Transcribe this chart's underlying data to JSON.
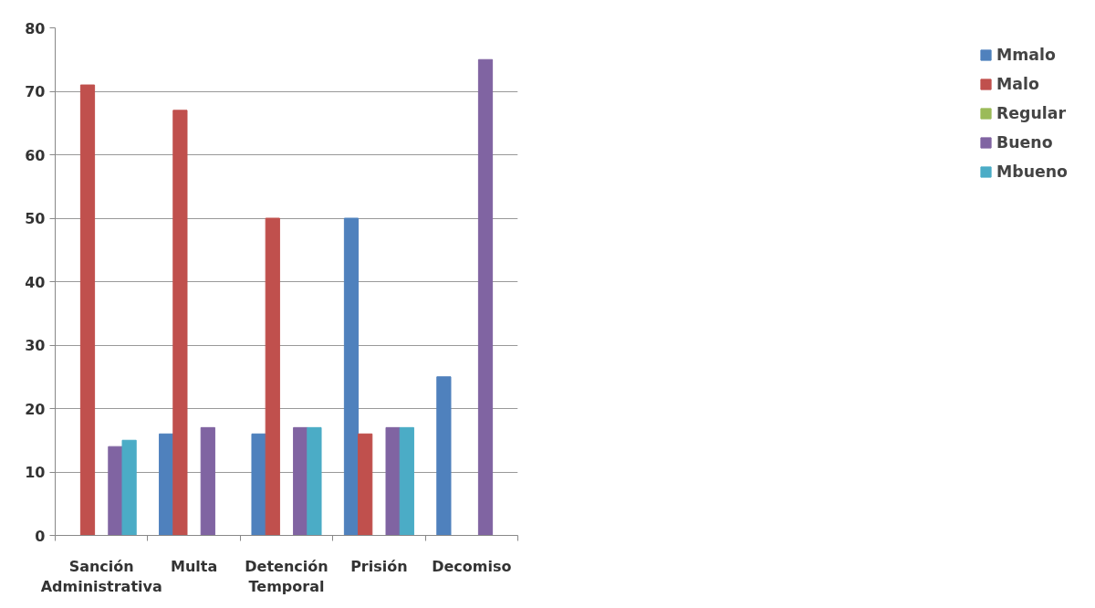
{
  "chart_data": {
    "type": "bar",
    "categories": [
      "Sanción Administrativa",
      "Multa",
      "Detención Temporal",
      "Prisión",
      "Decomiso"
    ],
    "series": [
      {
        "name": "Mmalo",
        "color": "#4f81bd",
        "values": [
          null,
          16,
          16,
          50,
          25
        ]
      },
      {
        "name": "Malo",
        "color": "#c0504d",
        "values": [
          71,
          67,
          50,
          16,
          null
        ]
      },
      {
        "name": "Regular",
        "color": "#9bbb59",
        "values": [
          null,
          null,
          null,
          null,
          null
        ]
      },
      {
        "name": "Bueno",
        "color": "#8064a2",
        "values": [
          14,
          17,
          17,
          17,
          75
        ]
      },
      {
        "name": "Mbueno",
        "color": "#4bacc6",
        "values": [
          15,
          null,
          17,
          17,
          null
        ]
      }
    ],
    "ylim": [
      0,
      80
    ],
    "yticks": [
      0,
      10,
      20,
      30,
      40,
      50,
      60,
      70,
      80
    ],
    "grid": "y",
    "legend": "right"
  }
}
